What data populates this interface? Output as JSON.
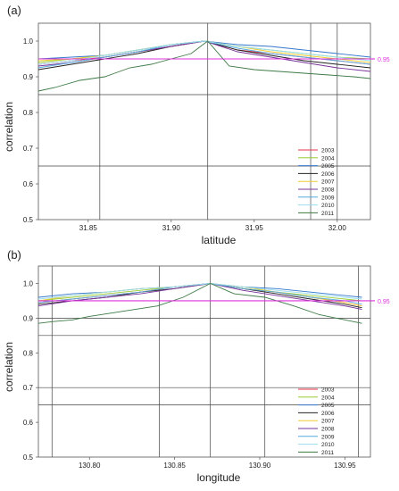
{
  "chart_data": [
    {
      "panel": "(a)",
      "type": "line",
      "xlabel": "latitude",
      "ylabel": "correlation",
      "xlim": [
        31.82,
        32.02
      ],
      "ylim": [
        0.5,
        1.05
      ],
      "xticks": [
        "31.85",
        "31.90",
        "31.95",
        "32.00"
      ],
      "yticks": [
        "0.5",
        "0.6",
        "0.7",
        "0.8",
        "0.9",
        "1.0"
      ],
      "threshold": {
        "value": 0.95,
        "label": "0.95",
        "color": "#dd33dd"
      },
      "hlines": [
        0.85,
        0.65
      ],
      "vlines": [
        31.857,
        31.922,
        31.984,
        32.0
      ],
      "legend_position": "bottom-right",
      "series": [
        {
          "name": "2003",
          "color": "#e8334a",
          "x": [
            31.82,
            31.84,
            31.86,
            31.88,
            31.9,
            31.92,
            31.94,
            31.96,
            31.98,
            32.0,
            32.02
          ],
          "y": [
            0.935,
            0.945,
            0.955,
            0.97,
            0.985,
            1.0,
            0.975,
            0.965,
            0.955,
            0.945,
            0.935
          ]
        },
        {
          "name": "2004",
          "color": "#99cc33",
          "x": [
            31.82,
            31.84,
            31.86,
            31.88,
            31.9,
            31.92,
            31.94,
            31.96,
            31.98,
            32.0,
            32.02
          ],
          "y": [
            0.94,
            0.95,
            0.96,
            0.975,
            0.99,
            1.0,
            0.985,
            0.975,
            0.965,
            0.955,
            0.95
          ]
        },
        {
          "name": "2005",
          "color": "#3377cc",
          "x": [
            31.82,
            31.84,
            31.86,
            31.88,
            31.9,
            31.92,
            31.94,
            31.96,
            31.98,
            32.0,
            32.02
          ],
          "y": [
            0.95,
            0.955,
            0.96,
            0.975,
            0.99,
            1.0,
            0.99,
            0.985,
            0.975,
            0.965,
            0.955
          ]
        },
        {
          "name": "2006",
          "color": "#222222",
          "x": [
            31.82,
            31.84,
            31.86,
            31.88,
            31.9,
            31.92,
            31.94,
            31.96,
            31.98,
            32.0,
            32.02
          ],
          "y": [
            0.92,
            0.935,
            0.95,
            0.965,
            0.985,
            1.0,
            0.975,
            0.96,
            0.945,
            0.935,
            0.925
          ]
        },
        {
          "name": "2007",
          "color": "#eecc33",
          "x": [
            31.82,
            31.84,
            31.86,
            31.88,
            31.9,
            31.92,
            31.94,
            31.96,
            31.98,
            32.0,
            32.02
          ],
          "y": [
            0.945,
            0.95,
            0.96,
            0.975,
            0.99,
            1.0,
            0.985,
            0.97,
            0.96,
            0.95,
            0.94
          ]
        },
        {
          "name": "2008",
          "color": "#773399",
          "x": [
            31.82,
            31.84,
            31.86,
            31.88,
            31.9,
            31.92,
            31.94,
            31.96,
            31.98,
            32.0,
            32.02
          ],
          "y": [
            0.93,
            0.94,
            0.955,
            0.97,
            0.985,
            1.0,
            0.97,
            0.955,
            0.94,
            0.925,
            0.915
          ]
        },
        {
          "name": "2009",
          "color": "#55aadd",
          "x": [
            31.82,
            31.84,
            31.86,
            31.88,
            31.9,
            31.92,
            31.94,
            31.96,
            31.98,
            32.0,
            32.02
          ],
          "y": [
            0.925,
            0.94,
            0.955,
            0.97,
            0.99,
            1.0,
            0.98,
            0.965,
            0.955,
            0.945,
            0.935
          ]
        },
        {
          "name": "2010",
          "color": "#99ddee",
          "x": [
            31.82,
            31.84,
            31.86,
            31.88,
            31.9,
            31.92,
            31.94,
            31.96,
            31.98,
            32.0,
            32.02
          ],
          "y": [
            0.935,
            0.945,
            0.96,
            0.975,
            0.99,
            1.0,
            0.985,
            0.975,
            0.965,
            0.955,
            0.945
          ]
        },
        {
          "name": "2011",
          "color": "#3d7a45",
          "x": [
            31.82,
            31.83,
            31.845,
            31.86,
            31.875,
            31.888,
            31.9,
            31.912,
            31.922,
            31.935,
            31.95,
            31.965,
            31.98,
            31.995,
            32.01,
            32.02
          ],
          "y": [
            0.86,
            0.87,
            0.89,
            0.9,
            0.925,
            0.935,
            0.95,
            0.965,
            1.0,
            0.93,
            0.92,
            0.915,
            0.91,
            0.905,
            0.9,
            0.895
          ]
        }
      ]
    },
    {
      "panel": "(b)",
      "type": "line",
      "xlabel": "longitude",
      "ylabel": "correlation",
      "xlim": [
        130.77,
        130.965
      ],
      "ylim": [
        0.5,
        1.05
      ],
      "xticks": [
        "130.80",
        "130.85",
        "130.90",
        "130.95"
      ],
      "yticks": [
        "0.5",
        "0.6",
        "0.7",
        "0.8",
        "0.9",
        "1.0"
      ],
      "threshold": {
        "value": 0.95,
        "label": "0.95",
        "color": "#dd33dd"
      },
      "hlines": [
        0.9,
        0.85,
        0.7,
        0.65
      ],
      "vlines": [
        130.778,
        130.841,
        130.871,
        130.903,
        130.958
      ],
      "legend_position": "bottom-right",
      "series": [
        {
          "name": "2003",
          "color": "#e8334a",
          "x": [
            130.77,
            130.79,
            130.81,
            130.83,
            130.85,
            130.871,
            130.89,
            130.91,
            130.93,
            130.95,
            130.96
          ],
          "y": [
            0.945,
            0.955,
            0.965,
            0.975,
            0.99,
            1.0,
            0.985,
            0.975,
            0.96,
            0.945,
            0.935
          ]
        },
        {
          "name": "2004",
          "color": "#99cc33",
          "x": [
            130.77,
            130.79,
            130.81,
            130.83,
            130.85,
            130.871,
            130.89,
            130.91,
            130.93,
            130.95,
            130.96
          ],
          "y": [
            0.95,
            0.96,
            0.97,
            0.98,
            0.99,
            1.0,
            0.985,
            0.975,
            0.965,
            0.955,
            0.95
          ]
        },
        {
          "name": "2005",
          "color": "#3377cc",
          "x": [
            130.77,
            130.79,
            130.81,
            130.83,
            130.85,
            130.871,
            130.89,
            130.91,
            130.93,
            130.95,
            130.96
          ],
          "y": [
            0.96,
            0.97,
            0.975,
            0.985,
            0.99,
            1.0,
            0.99,
            0.985,
            0.975,
            0.965,
            0.96
          ]
        },
        {
          "name": "2006",
          "color": "#222222",
          "x": [
            130.77,
            130.79,
            130.81,
            130.83,
            130.85,
            130.871,
            130.89,
            130.91,
            130.93,
            130.95,
            130.96
          ],
          "y": [
            0.94,
            0.95,
            0.96,
            0.975,
            0.985,
            1.0,
            0.985,
            0.97,
            0.955,
            0.94,
            0.93
          ]
        },
        {
          "name": "2007",
          "color": "#eecc33",
          "x": [
            130.77,
            130.79,
            130.81,
            130.83,
            130.85,
            130.871,
            130.89,
            130.91,
            130.93,
            130.95,
            130.96
          ],
          "y": [
            0.95,
            0.965,
            0.975,
            0.985,
            0.99,
            1.0,
            0.99,
            0.975,
            0.96,
            0.945,
            0.935
          ]
        },
        {
          "name": "2008",
          "color": "#773399",
          "x": [
            130.77,
            130.79,
            130.81,
            130.83,
            130.85,
            130.871,
            130.89,
            130.91,
            130.93,
            130.95,
            130.96
          ],
          "y": [
            0.935,
            0.95,
            0.96,
            0.97,
            0.985,
            1.0,
            0.98,
            0.965,
            0.95,
            0.935,
            0.925
          ]
        },
        {
          "name": "2009",
          "color": "#55aadd",
          "x": [
            130.77,
            130.79,
            130.81,
            130.83,
            130.85,
            130.871,
            130.89,
            130.91,
            130.93,
            130.95,
            130.96
          ],
          "y": [
            0.945,
            0.955,
            0.965,
            0.975,
            0.99,
            1.0,
            0.985,
            0.975,
            0.96,
            0.95,
            0.94
          ]
        },
        {
          "name": "2010",
          "color": "#99ddee",
          "x": [
            130.77,
            130.79,
            130.81,
            130.83,
            130.85,
            130.871,
            130.89,
            130.91,
            130.93,
            130.95,
            130.96
          ],
          "y": [
            0.955,
            0.965,
            0.975,
            0.985,
            0.99,
            1.0,
            0.99,
            0.98,
            0.97,
            0.96,
            0.955
          ]
        },
        {
          "name": "2011",
          "color": "#3d7a45",
          "x": [
            130.77,
            130.778,
            130.79,
            130.8,
            130.82,
            130.84,
            130.855,
            130.871,
            130.885,
            130.903,
            130.92,
            130.935,
            130.95,
            130.96
          ],
          "y": [
            0.885,
            0.89,
            0.895,
            0.905,
            0.92,
            0.935,
            0.96,
            1.0,
            0.97,
            0.96,
            0.935,
            0.91,
            0.895,
            0.885
          ]
        }
      ]
    }
  ]
}
